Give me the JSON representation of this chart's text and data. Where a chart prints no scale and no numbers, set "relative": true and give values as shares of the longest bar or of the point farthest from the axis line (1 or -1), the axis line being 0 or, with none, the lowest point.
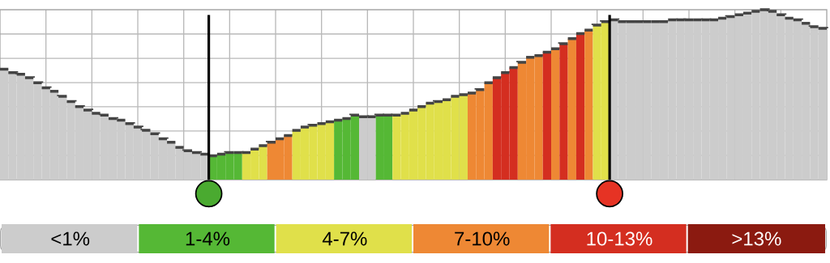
{
  "chart_data": [
    {
      "type": "bar",
      "relative": true,
      "grid": true,
      "tick_labels": false,
      "categories": [
        null,
        null,
        null,
        null,
        null,
        null,
        null,
        null,
        null,
        null,
        null,
        null,
        null,
        null,
        null,
        null,
        null,
        null,
        null,
        null,
        null,
        null,
        null,
        null,
        null,
        null,
        null,
        null,
        null,
        null,
        null,
        null,
        null,
        null,
        null,
        null,
        null,
        null,
        null,
        null,
        null,
        null,
        null,
        null,
        null,
        null,
        null,
        null,
        null,
        null,
        null,
        null,
        null,
        null,
        null,
        null,
        null,
        null,
        null,
        null,
        null,
        null,
        null,
        null,
        null,
        null,
        null,
        null,
        null,
        null,
        null,
        null,
        null,
        null,
        null,
        null,
        null,
        null,
        null,
        null,
        null,
        null,
        null,
        null,
        null,
        null,
        null,
        null,
        null,
        null,
        null,
        null,
        null,
        null,
        null,
        null,
        null,
        null,
        null
      ],
      "series": [
        {
          "colors": [
            "#cccccc",
            "#cccccc",
            "#cccccc",
            "#cccccc",
            "#cccccc",
            "#cccccc",
            "#cccccc",
            "#cccccc",
            "#cccccc",
            "#cccccc",
            "#cccccc",
            "#cccccc",
            "#cccccc",
            "#cccccc",
            "#cccccc",
            "#cccccc",
            "#cccccc",
            "#cccccc",
            "#cccccc",
            "#cccccc",
            "#cccccc",
            "#cccccc",
            "#cccccc",
            "#cccccc",
            "#cccccc",
            "#55b835",
            "#55b835",
            "#55b835",
            "#55b835",
            "#e0e04a",
            "#e0e04a",
            "#e0e04a",
            "#ee8834",
            "#ee8834",
            "#ee8834",
            "#e0e04a",
            "#e0e04a",
            "#e0e04a",
            "#e0e04a",
            "#e0e04a",
            "#55b835",
            "#55b835",
            "#55b835",
            "#cccccc",
            "#cccccc",
            "#55b835",
            "#55b835",
            "#e0e04a",
            "#e0e04a",
            "#e0e04a",
            "#e0e04a",
            "#e0e04a",
            "#e0e04a",
            "#e0e04a",
            "#e0e04a",
            "#e0e04a",
            "#ee8834",
            "#ee8834",
            "#ee8834",
            "#d42e20",
            "#d42e20",
            "#d42e20",
            "#ee8834",
            "#ee8834",
            "#ee8834",
            "#d42e20",
            "#ee8834",
            "#d42e20",
            "#ee8834",
            "#d42e20",
            "#ee8834",
            "#e0e04a",
            "#e0e04a",
            "#cccccc",
            "#cccccc",
            "#cccccc",
            "#cccccc",
            "#cccccc",
            "#cccccc",
            "#cccccc",
            "#cccccc",
            "#cccccc",
            "#cccccc",
            "#cccccc",
            "#cccccc",
            "#cccccc",
            "#cccccc",
            "#cccccc",
            "#cccccc",
            "#cccccc",
            "#cccccc",
            "#cccccc",
            "#cccccc",
            "#cccccc",
            "#cccccc",
            "#cccccc",
            "#cccccc",
            "#cccccc",
            "#cccccc"
          ],
          "values": [
            0.65,
            0.63,
            0.62,
            0.6,
            0.57,
            0.54,
            0.52,
            0.49,
            0.46,
            0.43,
            0.41,
            0.39,
            0.38,
            0.36,
            0.35,
            0.33,
            0.31,
            0.29,
            0.27,
            0.24,
            0.22,
            0.19,
            0.17,
            0.16,
            0.15,
            0.14,
            0.15,
            0.16,
            0.16,
            0.16,
            0.18,
            0.2,
            0.22,
            0.24,
            0.26,
            0.29,
            0.31,
            0.32,
            0.33,
            0.34,
            0.35,
            0.36,
            0.38,
            0.37,
            0.37,
            0.38,
            0.38,
            0.38,
            0.39,
            0.41,
            0.43,
            0.45,
            0.46,
            0.47,
            0.49,
            0.5,
            0.51,
            0.53,
            0.57,
            0.6,
            0.63,
            0.66,
            0.69,
            0.72,
            0.73,
            0.75,
            0.77,
            0.8,
            0.83,
            0.86,
            0.88,
            0.91,
            0.93,
            0.94,
            0.93,
            0.93,
            0.93,
            0.93,
            0.93,
            0.93,
            0.94,
            0.94,
            0.94,
            0.94,
            0.94,
            0.94,
            0.95,
            0.96,
            0.97,
            0.98,
            0.99,
            1,
            0.99,
            0.97,
            0.95,
            0.94,
            0.92,
            0.9,
            0.89
          ]
        }
      ]
    },
    {
      "type": "other",
      "categories": [
        "<1%",
        "1-4%",
        "4-7%",
        "7-10%",
        "10-13%",
        ">13%"
      ],
      "colors": [
        "#cccccc",
        "#55b835",
        "#e0e04a",
        "#ee8834",
        "#d42e20",
        "#8b1a10"
      ]
    }
  ]
}
